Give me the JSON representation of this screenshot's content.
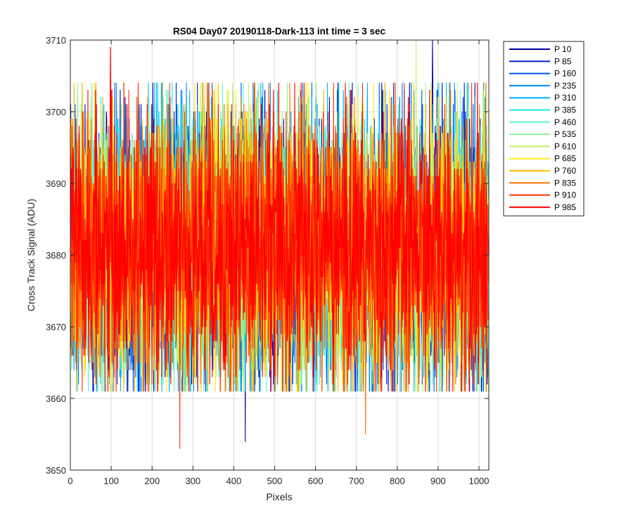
{
  "chart_data": {
    "type": "line",
    "title": "RS04 Day07 20190118-Dark-113 int time = 3 sec",
    "xlabel": "Pixels",
    "ylabel": "Cross Track Signal (ADU)",
    "xlim": [
      0,
      1024
    ],
    "ylim": [
      3650,
      3710
    ],
    "xticks": [
      0,
      100,
      200,
      300,
      400,
      500,
      600,
      700,
      800,
      900,
      1000
    ],
    "yticks": [
      3650,
      3660,
      3670,
      3680,
      3690,
      3700,
      3710
    ],
    "grid": true,
    "legend_position": "outside-top-right",
    "n_points_per_series": 1024,
    "signal_mean": 3681,
    "signal_typical_range": [
      3664,
      3701
    ],
    "series": [
      {
        "name": "P 10",
        "color": "#0000aa"
      },
      {
        "name": "P 85",
        "color": "#0022dd"
      },
      {
        "name": "P 160",
        "color": "#0055f0"
      },
      {
        "name": "P 235",
        "color": "#0088f5"
      },
      {
        "name": "P 310",
        "color": "#00b0f5"
      },
      {
        "name": "P 385",
        "color": "#11e8f0"
      },
      {
        "name": "P 460",
        "color": "#66f5cc"
      },
      {
        "name": "P 535",
        "color": "#88f599"
      },
      {
        "name": "P 610",
        "color": "#bbf566"
      },
      {
        "name": "P 685",
        "color": "#ffee11"
      },
      {
        "name": "P 760",
        "color": "#ffbb00"
      },
      {
        "name": "P 835",
        "color": "#ff7700"
      },
      {
        "name": "P 910",
        "color": "#ff3300"
      },
      {
        "name": "P 985",
        "color": "#ff0000"
      }
    ],
    "notable_extremes": [
      {
        "series": "P 910",
        "x": 268,
        "y": 3653
      },
      {
        "series": "P 10",
        "x": 428,
        "y": 3654
      },
      {
        "series": "P 835",
        "x": 722,
        "y": 3655
      },
      {
        "series": "P 985",
        "x": 98,
        "y": 3709
      },
      {
        "series": "P 10",
        "x": 886,
        "y": 3710
      },
      {
        "series": "P 610",
        "x": 846,
        "y": 3710
      }
    ]
  }
}
